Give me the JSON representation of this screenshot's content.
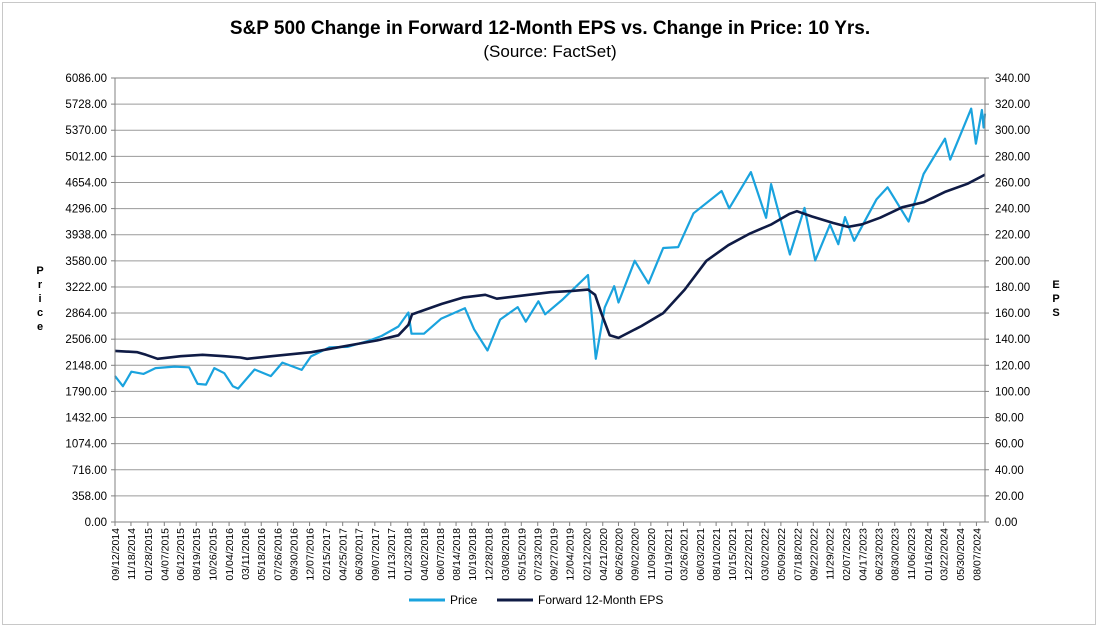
{
  "chart_data": {
    "type": "line",
    "title": "S&P 500 Change in Forward 12-Month EPS vs. Change in Price: 10 Yrs.",
    "subtitle": "(Source: FactSet)",
    "y_left_label": "Price",
    "y_right_label": "EPS",
    "y_left_range": [
      0,
      6086
    ],
    "y_right_range": [
      0,
      340
    ],
    "y_left_ticks": [
      "0.00",
      "358.00",
      "716.00",
      "1074.00",
      "1432.00",
      "1790.00",
      "2148.00",
      "2506.00",
      "2864.00",
      "3222.00",
      "3580.00",
      "3938.00",
      "4296.00",
      "4654.00",
      "5012.00",
      "5370.00",
      "5728.00",
      "6086.00"
    ],
    "y_right_ticks": [
      "0.00",
      "20.00",
      "40.00",
      "60.00",
      "80.00",
      "100.00",
      "120.00",
      "140.00",
      "160.00",
      "180.00",
      "200.00",
      "220.00",
      "240.00",
      "260.00",
      "280.00",
      "300.00",
      "320.00",
      "340.00"
    ],
    "x_range": [
      "2014-09-12",
      "2024-09-12"
    ],
    "x_ticks": [
      "09/12/2014",
      "11/18/2014",
      "01/28/2015",
      "04/07/2015",
      "06/12/2015",
      "08/19/2015",
      "10/26/2015",
      "01/04/2016",
      "03/11/2016",
      "05/18/2016",
      "07/26/2016",
      "09/30/2016",
      "12/07/2016",
      "02/15/2017",
      "04/25/2017",
      "06/30/2017",
      "09/07/2017",
      "11/13/2017",
      "01/23/2018",
      "04/02/2018",
      "06/07/2018",
      "08/14/2018",
      "10/19/2018",
      "12/28/2018",
      "03/08/2019",
      "05/15/2019",
      "07/23/2019",
      "09/27/2019",
      "12/04/2019",
      "02/12/2020",
      "04/21/2020",
      "06/26/2020",
      "09/02/2020",
      "11/09/2020",
      "01/19/2021",
      "03/26/2021",
      "06/03/2021",
      "08/10/2021",
      "10/15/2021",
      "12/22/2021",
      "03/02/2022",
      "05/09/2022",
      "07/18/2022",
      "09/22/2022",
      "11/29/2022",
      "02/07/2023",
      "04/17/2023",
      "06/23/2023",
      "08/30/2023",
      "11/06/2023",
      "01/16/2024",
      "03/22/2024",
      "05/30/2024",
      "08/07/2024"
    ],
    "grid": true,
    "legend_position": "bottom",
    "series": [
      {
        "name": "Price",
        "axis": "left",
        "color": "#1aa3de",
        "points": [
          [
            "2014-09-12",
            2000
          ],
          [
            "2014-10-15",
            1862
          ],
          [
            "2014-11-20",
            2060
          ],
          [
            "2015-01-10",
            2030
          ],
          [
            "2015-03-01",
            2110
          ],
          [
            "2015-05-20",
            2130
          ],
          [
            "2015-07-20",
            2120
          ],
          [
            "2015-08-25",
            1893
          ],
          [
            "2015-09-29",
            1884
          ],
          [
            "2015-11-03",
            2110
          ],
          [
            "2015-12-15",
            2040
          ],
          [
            "2016-01-20",
            1860
          ],
          [
            "2016-02-11",
            1829
          ],
          [
            "2016-04-20",
            2090
          ],
          [
            "2016-06-27",
            2000
          ],
          [
            "2016-08-15",
            2185
          ],
          [
            "2016-11-04",
            2085
          ],
          [
            "2016-12-13",
            2270
          ],
          [
            "2017-03-01",
            2395
          ],
          [
            "2017-05-15",
            2400
          ],
          [
            "2017-08-08",
            2480
          ],
          [
            "2017-10-05",
            2550
          ],
          [
            "2017-12-15",
            2680
          ],
          [
            "2018-01-26",
            2872
          ],
          [
            "2018-02-08",
            2581
          ],
          [
            "2018-04-02",
            2582
          ],
          [
            "2018-06-12",
            2785
          ],
          [
            "2018-09-20",
            2930
          ],
          [
            "2018-10-29",
            2641
          ],
          [
            "2018-12-24",
            2351
          ],
          [
            "2019-02-15",
            2775
          ],
          [
            "2019-04-30",
            2945
          ],
          [
            "2019-06-03",
            2745
          ],
          [
            "2019-07-26",
            3025
          ],
          [
            "2019-08-23",
            2847
          ],
          [
            "2019-10-31",
            3037
          ],
          [
            "2019-12-31",
            3230
          ],
          [
            "2020-02-19",
            3386
          ],
          [
            "2020-03-23",
            2237
          ],
          [
            "2020-04-29",
            2939
          ],
          [
            "2020-06-08",
            3232
          ],
          [
            "2020-06-26",
            3009
          ],
          [
            "2020-09-02",
            3580
          ],
          [
            "2020-10-30",
            3270
          ],
          [
            "2020-12-31",
            3756
          ],
          [
            "2021-03-04",
            3768
          ],
          [
            "2021-05-07",
            4232
          ],
          [
            "2021-09-02",
            4537
          ],
          [
            "2021-10-04",
            4300
          ],
          [
            "2022-01-03",
            4796
          ],
          [
            "2022-03-08",
            4170
          ],
          [
            "2022-03-29",
            4631
          ],
          [
            "2022-06-16",
            3666
          ],
          [
            "2022-08-16",
            4305
          ],
          [
            "2022-09-30",
            3585
          ],
          [
            "2022-12-01",
            4076
          ],
          [
            "2023-01-05",
            3808
          ],
          [
            "2023-02-02",
            4179
          ],
          [
            "2023-03-13",
            3855
          ],
          [
            "2023-06-15",
            4425
          ],
          [
            "2023-07-31",
            4588
          ],
          [
            "2023-10-27",
            4117
          ],
          [
            "2023-12-29",
            4770
          ],
          [
            "2024-03-28",
            5254
          ],
          [
            "2024-04-19",
            4967
          ],
          [
            "2024-07-16",
            5667
          ],
          [
            "2024-08-05",
            5186
          ],
          [
            "2024-08-30",
            5648
          ],
          [
            "2024-09-06",
            5408
          ],
          [
            "2024-09-12",
            5596
          ]
        ]
      },
      {
        "name": "Forward 12-Month EPS",
        "axis": "right",
        "color": "#0f1b45",
        "points": [
          [
            "2014-09-12",
            131
          ],
          [
            "2014-12-15",
            130
          ],
          [
            "2015-01-20",
            128
          ],
          [
            "2015-03-10",
            125
          ],
          [
            "2015-06-15",
            127
          ],
          [
            "2015-09-15",
            128
          ],
          [
            "2015-12-15",
            127
          ],
          [
            "2016-02-20",
            126
          ],
          [
            "2016-03-20",
            125
          ],
          [
            "2016-07-01",
            127
          ],
          [
            "2016-12-15",
            130
          ],
          [
            "2017-03-15",
            133
          ],
          [
            "2017-06-15",
            136
          ],
          [
            "2017-09-15",
            139
          ],
          [
            "2017-12-15",
            143
          ],
          [
            "2018-01-26",
            151
          ],
          [
            "2018-02-10",
            159
          ],
          [
            "2018-06-15",
            167
          ],
          [
            "2018-09-15",
            172
          ],
          [
            "2018-12-15",
            174
          ],
          [
            "2019-02-01",
            171
          ],
          [
            "2019-06-15",
            174
          ],
          [
            "2019-09-15",
            176
          ],
          [
            "2019-12-15",
            177
          ],
          [
            "2020-02-19",
            178
          ],
          [
            "2020-03-20",
            174
          ],
          [
            "2020-04-15",
            160
          ],
          [
            "2020-05-20",
            143
          ],
          [
            "2020-06-26",
            141
          ],
          [
            "2020-09-30",
            150
          ],
          [
            "2020-12-31",
            160
          ],
          [
            "2021-03-31",
            178
          ],
          [
            "2021-06-30",
            200
          ],
          [
            "2021-09-30",
            212
          ],
          [
            "2021-12-31",
            221
          ],
          [
            "2022-03-31",
            228
          ],
          [
            "2022-06-15",
            236
          ],
          [
            "2022-07-15",
            238
          ],
          [
            "2022-09-15",
            234
          ],
          [
            "2022-12-15",
            229
          ],
          [
            "2023-02-15",
            226
          ],
          [
            "2023-04-15",
            228
          ],
          [
            "2023-06-30",
            233
          ],
          [
            "2023-09-30",
            241
          ],
          [
            "2023-12-31",
            245
          ],
          [
            "2024-03-31",
            253
          ],
          [
            "2024-06-30",
            259
          ],
          [
            "2024-09-12",
            266
          ]
        ]
      }
    ]
  }
}
